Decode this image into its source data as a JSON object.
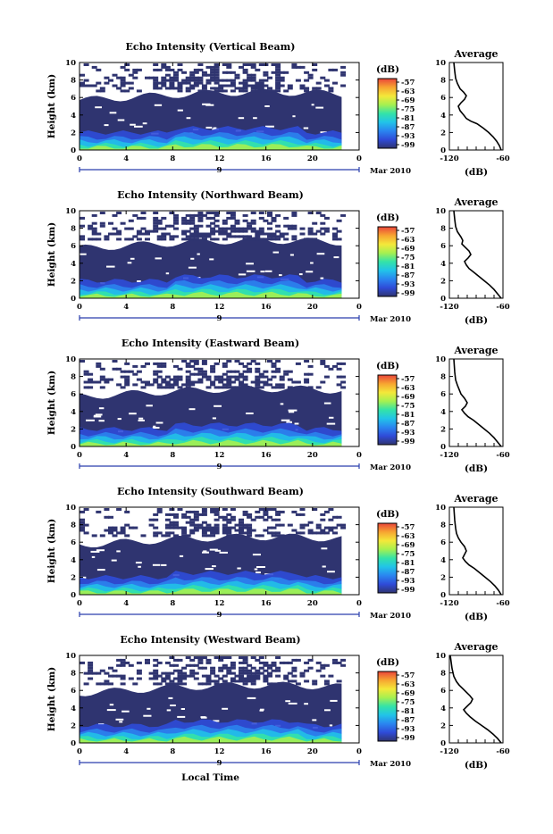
{
  "chart_data": [
    {
      "type": "heatmap",
      "title": "Echo Intensity (Vertical Beam)",
      "ylabel": "Height (km)",
      "xlabel": "",
      "x_ticks": [
        "0",
        "4",
        "8",
        "12",
        "16",
        "20",
        "0"
      ],
      "y_ticks": [
        "0",
        "2",
        "4",
        "6",
        "8",
        "10"
      ],
      "xlim": [
        0,
        24
      ],
      "ylim": [
        0,
        10
      ],
      "date_marker": "9",
      "date_label": "Mar 2010",
      "colorbar": {
        "label": "(dB)",
        "ticks": [
          "-57",
          "-63",
          "-69",
          "-75",
          "-81",
          "-87",
          "-93",
          "-99"
        ]
      },
      "profile": {
        "title": "Average",
        "xlabel": "(dB)",
        "x_ticks": [
          "-120",
          "-60"
        ],
        "y_ticks": [
          "0",
          "2",
          "4",
          "6",
          "8",
          "10"
        ],
        "xlim": [
          -120,
          -60
        ],
        "ylim": [
          0,
          10
        ],
        "x": [
          -62,
          -64,
          -67,
          -71,
          -76,
          -82,
          -89,
          -96,
          -101,
          -104,
          -108,
          -110,
          -107,
          -103,
          -101,
          -104,
          -108,
          -111,
          -113,
          -114,
          -115
        ],
        "y": [
          0,
          0.5,
          1,
          1.5,
          2,
          2.5,
          3,
          3.3,
          3.6,
          4,
          4.5,
          5,
          5.4,
          5.8,
          6.2,
          6.6,
          7,
          7.6,
          8.2,
          9,
          10
        ]
      }
    },
    {
      "type": "heatmap",
      "title": "Echo Intensity (Northward Beam)",
      "ylabel": "Height (km)",
      "xlabel": "",
      "x_ticks": [
        "0",
        "4",
        "8",
        "12",
        "16",
        "20",
        "0"
      ],
      "y_ticks": [
        "0",
        "2",
        "4",
        "6",
        "8",
        "10"
      ],
      "xlim": [
        0,
        24
      ],
      "ylim": [
        0,
        10
      ],
      "date_marker": "9",
      "date_label": "Mar 2010",
      "colorbar": {
        "label": "(dB)",
        "ticks": [
          "-57",
          "-63",
          "-69",
          "-75",
          "-81",
          "-87",
          "-93",
          "-99"
        ]
      },
      "profile": {
        "title": "Average",
        "xlabel": "(dB)",
        "x_ticks": [
          "-120",
          "-60"
        ],
        "y_ticks": [
          "0",
          "2",
          "4",
          "6",
          "8",
          "10"
        ],
        "xlim": [
          -120,
          -60
        ],
        "ylim": [
          0,
          10
        ],
        "x": [
          -62,
          -66,
          -70,
          -75,
          -81,
          -87,
          -93,
          -98,
          -101,
          -103,
          -99,
          -96,
          -98,
          -102,
          -106,
          -105,
          -107,
          -111,
          -113,
          -114,
          -115
        ],
        "y": [
          0,
          0.5,
          1,
          1.5,
          2,
          2.5,
          3,
          3.4,
          3.8,
          4.2,
          4.6,
          5,
          5.4,
          5.8,
          6.2,
          6.6,
          7,
          7.6,
          8.2,
          9,
          10
        ]
      }
    },
    {
      "type": "heatmap",
      "title": "Echo Intensity (Eastward Beam)",
      "ylabel": "Height (km)",
      "xlabel": "",
      "x_ticks": [
        "0",
        "4",
        "8",
        "12",
        "16",
        "20",
        "0"
      ],
      "y_ticks": [
        "0",
        "2",
        "4",
        "6",
        "8",
        "10"
      ],
      "xlim": [
        0,
        24
      ],
      "ylim": [
        0,
        10
      ],
      "date_marker": "9",
      "date_label": "Mar 2010",
      "colorbar": {
        "label": "(dB)",
        "ticks": [
          "-57",
          "-63",
          "-69",
          "-75",
          "-81",
          "-87",
          "-93",
          "-99"
        ]
      },
      "profile": {
        "title": "Average",
        "xlabel": "(dB)",
        "x_ticks": [
          "-120",
          "-60"
        ],
        "y_ticks": [
          "0",
          "2",
          "4",
          "6",
          "8",
          "10"
        ],
        "xlim": [
          -120,
          -60
        ],
        "ylim": [
          0,
          10
        ],
        "x": [
          -62,
          -66,
          -70,
          -75,
          -81,
          -87,
          -93,
          -99,
          -103,
          -106,
          -102,
          -100,
          -103,
          -107,
          -109,
          -111,
          -113,
          -114,
          -115
        ],
        "y": [
          0,
          0.5,
          1,
          1.5,
          2,
          2.5,
          3,
          3.4,
          3.8,
          4.2,
          4.6,
          5,
          5.5,
          6,
          6.5,
          7,
          7.6,
          8.5,
          10
        ]
      }
    },
    {
      "type": "heatmap",
      "title": "Echo Intensity (Southward Beam)",
      "ylabel": "Height (km)",
      "xlabel": "",
      "x_ticks": [
        "0",
        "4",
        "8",
        "12",
        "16",
        "20",
        "0"
      ],
      "y_ticks": [
        "0",
        "2",
        "4",
        "6",
        "8",
        "10"
      ],
      "xlim": [
        0,
        24
      ],
      "ylim": [
        0,
        10
      ],
      "date_marker": "9",
      "date_label": "Mar 2010",
      "colorbar": {
        "label": "(dB)",
        "ticks": [
          "-57",
          "-63",
          "-69",
          "-75",
          "-81",
          "-87",
          "-93",
          "-99"
        ]
      },
      "profile": {
        "title": "Average",
        "xlabel": "(dB)",
        "x_ticks": [
          "-120",
          "-60"
        ],
        "y_ticks": [
          "0",
          "2",
          "4",
          "6",
          "8",
          "10"
        ],
        "xlim": [
          -120,
          -60
        ],
        "ylim": [
          0,
          10
        ],
        "x": [
          -62,
          -65,
          -69,
          -74,
          -80,
          -86,
          -92,
          -98,
          -102,
          -105,
          -103,
          -101,
          -103,
          -107,
          -110,
          -112,
          -113,
          -114,
          -115
        ],
        "y": [
          0,
          0.5,
          1,
          1.5,
          2,
          2.5,
          3,
          3.4,
          3.8,
          4.2,
          4.6,
          5,
          5.5,
          6,
          6.5,
          7,
          7.6,
          8.5,
          10
        ]
      }
    },
    {
      "type": "heatmap",
      "title": "Echo Intensity (Westward Beam)",
      "ylabel": "Height (km)",
      "xlabel": "Local Time",
      "x_ticks": [
        "0",
        "4",
        "8",
        "12",
        "16",
        "20",
        "0"
      ],
      "y_ticks": [
        "0",
        "2",
        "4",
        "6",
        "8",
        "10"
      ],
      "xlim": [
        0,
        24
      ],
      "ylim": [
        0,
        10
      ],
      "date_marker": "9",
      "date_label": "Mar 2010",
      "colorbar": {
        "label": "(dB)",
        "ticks": [
          "-57",
          "-63",
          "-69",
          "-75",
          "-81",
          "-87",
          "-93",
          "-99"
        ]
      },
      "profile": {
        "title": "Average",
        "xlabel": "(dB)",
        "x_ticks": [
          "-120",
          "-60"
        ],
        "y_ticks": [
          "0",
          "2",
          "4",
          "6",
          "8",
          "10"
        ],
        "xlim": [
          -120,
          -60
        ],
        "ylim": [
          0,
          10
        ],
        "x": [
          -62,
          -66,
          -71,
          -77,
          -84,
          -91,
          -97,
          -101,
          -104,
          -100,
          -96,
          -94,
          -97,
          -101,
          -105,
          -109,
          -112,
          -115,
          -117,
          -119
        ],
        "y": [
          0,
          0.5,
          1,
          1.5,
          2,
          2.5,
          3,
          3.4,
          3.8,
          4.2,
          4.6,
          5,
          5.4,
          5.8,
          6.2,
          6.6,
          7,
          7.6,
          8.5,
          10
        ]
      }
    }
  ],
  "colors": {
    "background_fill": "#2f3470",
    "palette": [
      "#2f3470",
      "#2f4bd8",
      "#2a86f0",
      "#21c4e8",
      "#34e3a7",
      "#a6f050",
      "#f4e83a",
      "#f7a531",
      "#e9443a"
    ]
  }
}
